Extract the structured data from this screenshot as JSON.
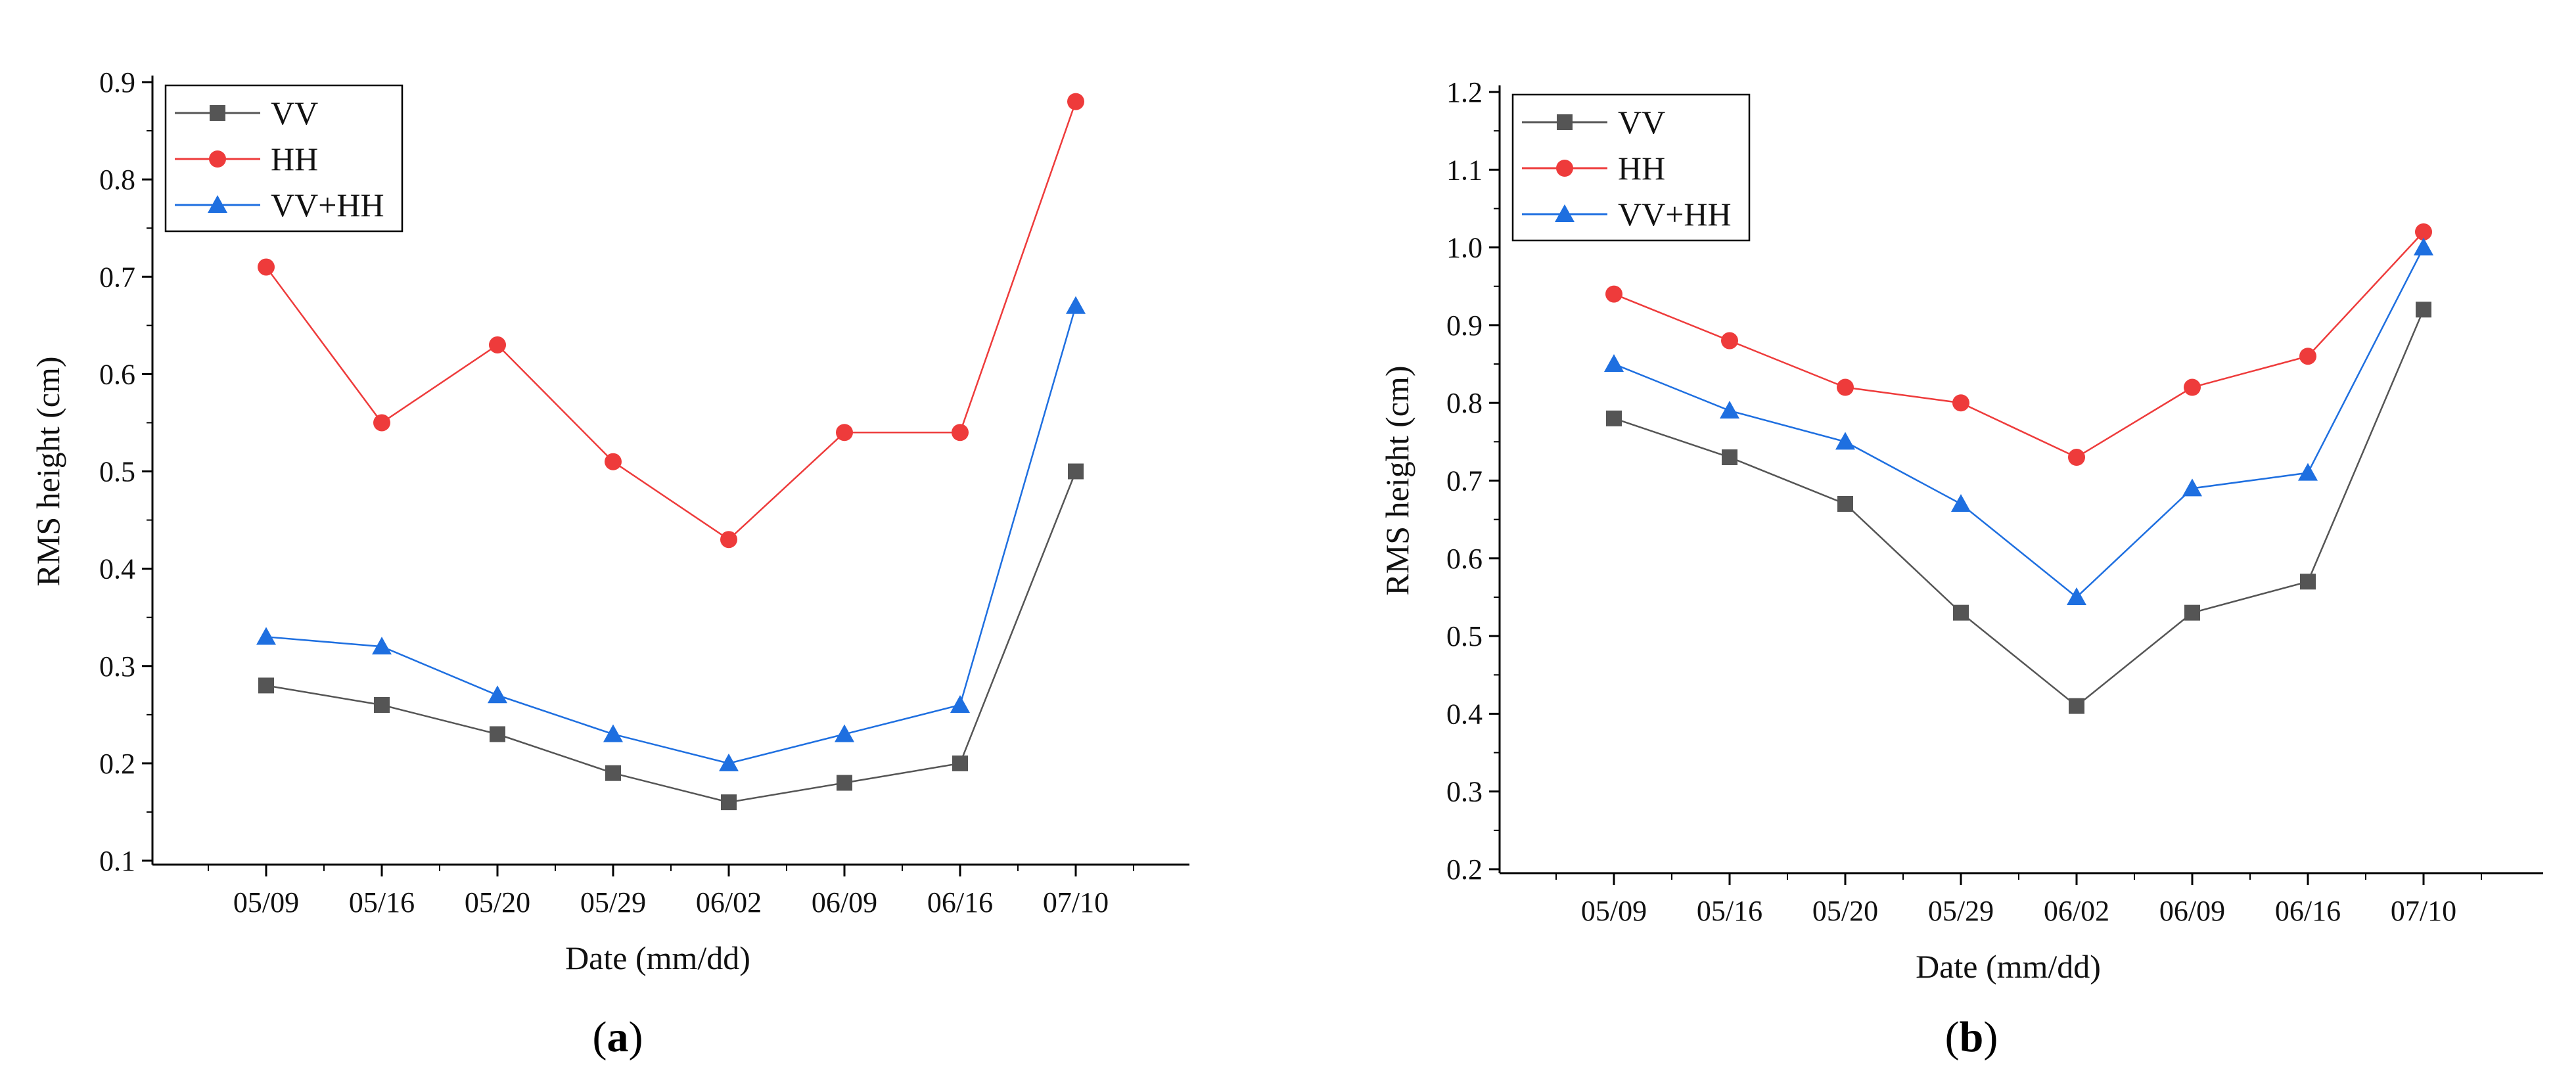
{
  "chart_data": [
    {
      "type": "line",
      "panel": "a",
      "caption": "a",
      "xlabel": "Date (mm/dd)",
      "ylabel": "RMS height (cm)",
      "categories": [
        "05/09",
        "05/16",
        "05/20",
        "05/29",
        "06/02",
        "06/09",
        "06/16",
        "07/10"
      ],
      "ylim": [
        0.1,
        0.9
      ],
      "yticks": [
        "0.1",
        "0.2",
        "0.3",
        "0.4",
        "0.5",
        "0.6",
        "0.7",
        "0.8",
        "0.9"
      ],
      "legend_position": "top-left",
      "series": [
        {
          "name": "VV",
          "marker": "square",
          "color": "#555555",
          "values": [
            0.28,
            0.26,
            0.23,
            0.19,
            0.16,
            0.18,
            0.2,
            0.5
          ]
        },
        {
          "name": "HH",
          "marker": "circle",
          "color": "#ee3b3b",
          "values": [
            0.71,
            0.55,
            0.63,
            0.51,
            0.43,
            0.54,
            0.54,
            0.88
          ]
        },
        {
          "name": "VV+HH",
          "marker": "triangle",
          "color": "#1e6fe0",
          "values": [
            0.33,
            0.32,
            0.27,
            0.23,
            0.2,
            0.23,
            0.26,
            0.67
          ]
        }
      ]
    },
    {
      "type": "line",
      "panel": "b",
      "caption": "b",
      "xlabel": "Date (mm/dd)",
      "ylabel": "RMS height (cm)",
      "categories": [
        "05/09",
        "05/16",
        "05/20",
        "05/29",
        "06/02",
        "06/09",
        "06/16",
        "07/10"
      ],
      "ylim": [
        0.2,
        1.2
      ],
      "yticks": [
        "0.2",
        "0.3",
        "0.4",
        "0.5",
        "0.6",
        "0.7",
        "0.8",
        "0.9",
        "1.0",
        "1.1",
        "1.2"
      ],
      "legend_position": "top-left",
      "series": [
        {
          "name": "VV",
          "marker": "square",
          "color": "#555555",
          "values": [
            0.78,
            0.73,
            0.67,
            0.53,
            0.41,
            0.53,
            0.57,
            0.92
          ]
        },
        {
          "name": "HH",
          "marker": "circle",
          "color": "#ee3b3b",
          "values": [
            0.94,
            0.88,
            0.82,
            0.8,
            0.73,
            0.82,
            0.86,
            1.02
          ]
        },
        {
          "name": "VV+HH",
          "marker": "triangle",
          "color": "#1e6fe0",
          "values": [
            0.85,
            0.79,
            0.75,
            0.67,
            0.55,
            0.69,
            0.71,
            1.0
          ]
        }
      ]
    }
  ]
}
